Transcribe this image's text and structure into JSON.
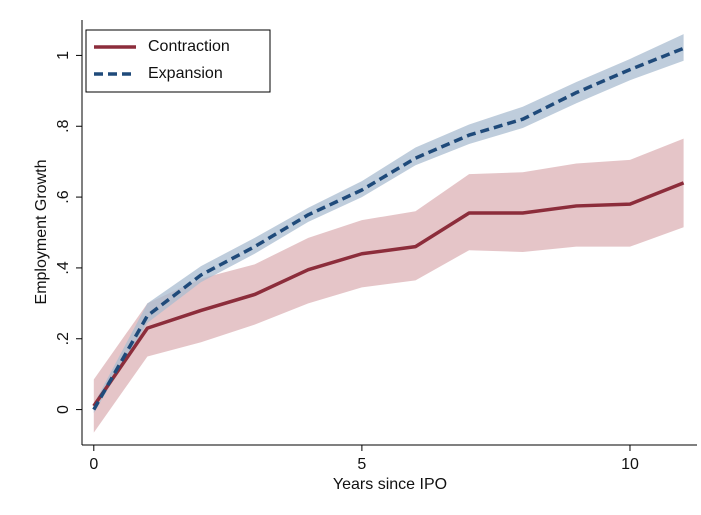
{
  "chart_data": {
    "type": "line",
    "x_label": "Years since IPO",
    "y_label": "Employment Growth",
    "x": [
      0,
      1,
      2,
      3,
      4,
      5,
      6,
      7,
      8,
      9,
      10,
      11
    ],
    "xlim": [
      -0.22,
      11.25
    ],
    "ylim": [
      -0.1,
      1.1
    ],
    "xticks": [
      0,
      5,
      10
    ],
    "yticks": [
      0,
      {
        "value": 0.2,
        "label": ".2"
      },
      {
        "value": 0.4,
        "label": ".4"
      },
      {
        "value": 0.6,
        "label": ".6"
      },
      {
        "value": 0.8,
        "label": ".8"
      },
      1
    ],
    "grid": false,
    "legend": "top-left",
    "series": [
      {
        "name": "Contraction",
        "color": "#8c2d3b",
        "band_color": "#dcb1b6",
        "dash": "solid",
        "values": [
          0.01,
          0.23,
          0.28,
          0.325,
          0.395,
          0.44,
          0.46,
          0.555,
          0.555,
          0.575,
          0.58,
          0.64
        ],
        "lower": [
          -0.065,
          0.15,
          0.19,
          0.24,
          0.3,
          0.345,
          0.365,
          0.45,
          0.445,
          0.46,
          0.46,
          0.515
        ],
        "upper": [
          0.085,
          0.3,
          0.37,
          0.41,
          0.485,
          0.535,
          0.56,
          0.665,
          0.67,
          0.695,
          0.705,
          0.765
        ]
      },
      {
        "name": "Expansion",
        "color": "#1f4a7a",
        "band_color": "#a9bcd0",
        "dash": "dashed",
        "values": [
          0.0,
          0.265,
          0.38,
          0.46,
          0.55,
          0.62,
          0.71,
          0.775,
          0.82,
          0.895,
          0.96,
          1.02
        ],
        "lower": [
          -0.01,
          0.245,
          0.36,
          0.44,
          0.53,
          0.6,
          0.69,
          0.75,
          0.795,
          0.865,
          0.93,
          0.985
        ],
        "upper": [
          0.015,
          0.3,
          0.405,
          0.485,
          0.57,
          0.645,
          0.74,
          0.805,
          0.855,
          0.925,
          0.99,
          1.06
        ]
      }
    ]
  }
}
